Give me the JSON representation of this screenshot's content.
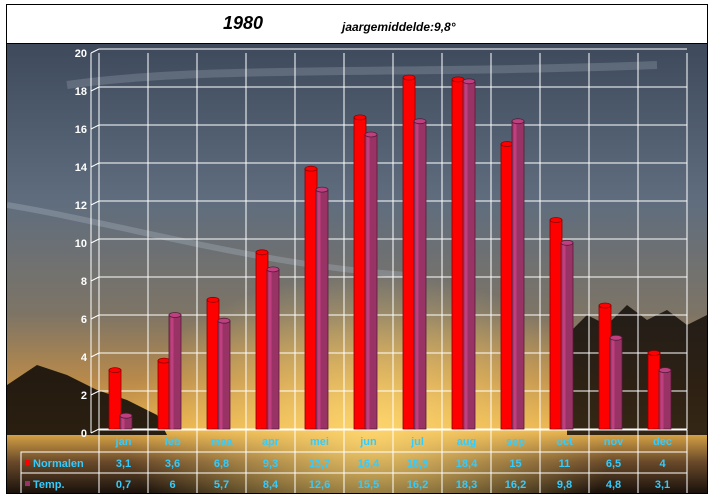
{
  "chart_data": {
    "type": "bar",
    "title": "1980",
    "subtitle": "jaargemiddelde:9,8°",
    "categories": [
      "jan",
      "feb",
      "maa",
      "apr",
      "mei",
      "jun",
      "jul",
      "aug",
      "sep",
      "oct",
      "nov",
      "dec"
    ],
    "series": [
      {
        "name": "Normalen",
        "color": "#ff0000",
        "values": [
          3.1,
          3.6,
          6.8,
          9.3,
          13.7,
          16.4,
          18.5,
          18.4,
          15,
          11,
          6.5,
          4
        ],
        "labels": [
          "3,1",
          "3,6",
          "6,8",
          "9,3",
          "13,7",
          "16,4",
          "18,5",
          "18,4",
          "15",
          "11",
          "6,5",
          "4"
        ]
      },
      {
        "name": "Temp.",
        "color": "#993366",
        "values": [
          0.7,
          6,
          5.7,
          8.4,
          12.6,
          15.5,
          16.2,
          18.3,
          16.2,
          9.8,
          4.8,
          3.1
        ],
        "labels": [
          "0,7",
          "6",
          "5,7",
          "8,4",
          "12,6",
          "15,5",
          "16,2",
          "18,3",
          "16,2",
          "9,8",
          "4,8",
          "3,1"
        ]
      }
    ],
    "ylim": [
      0,
      20
    ],
    "yticks": [
      "0",
      "2",
      "4",
      "6",
      "8",
      "10",
      "12",
      "14",
      "16",
      "18",
      "20"
    ],
    "grid": true,
    "legend": "data-table-left"
  }
}
